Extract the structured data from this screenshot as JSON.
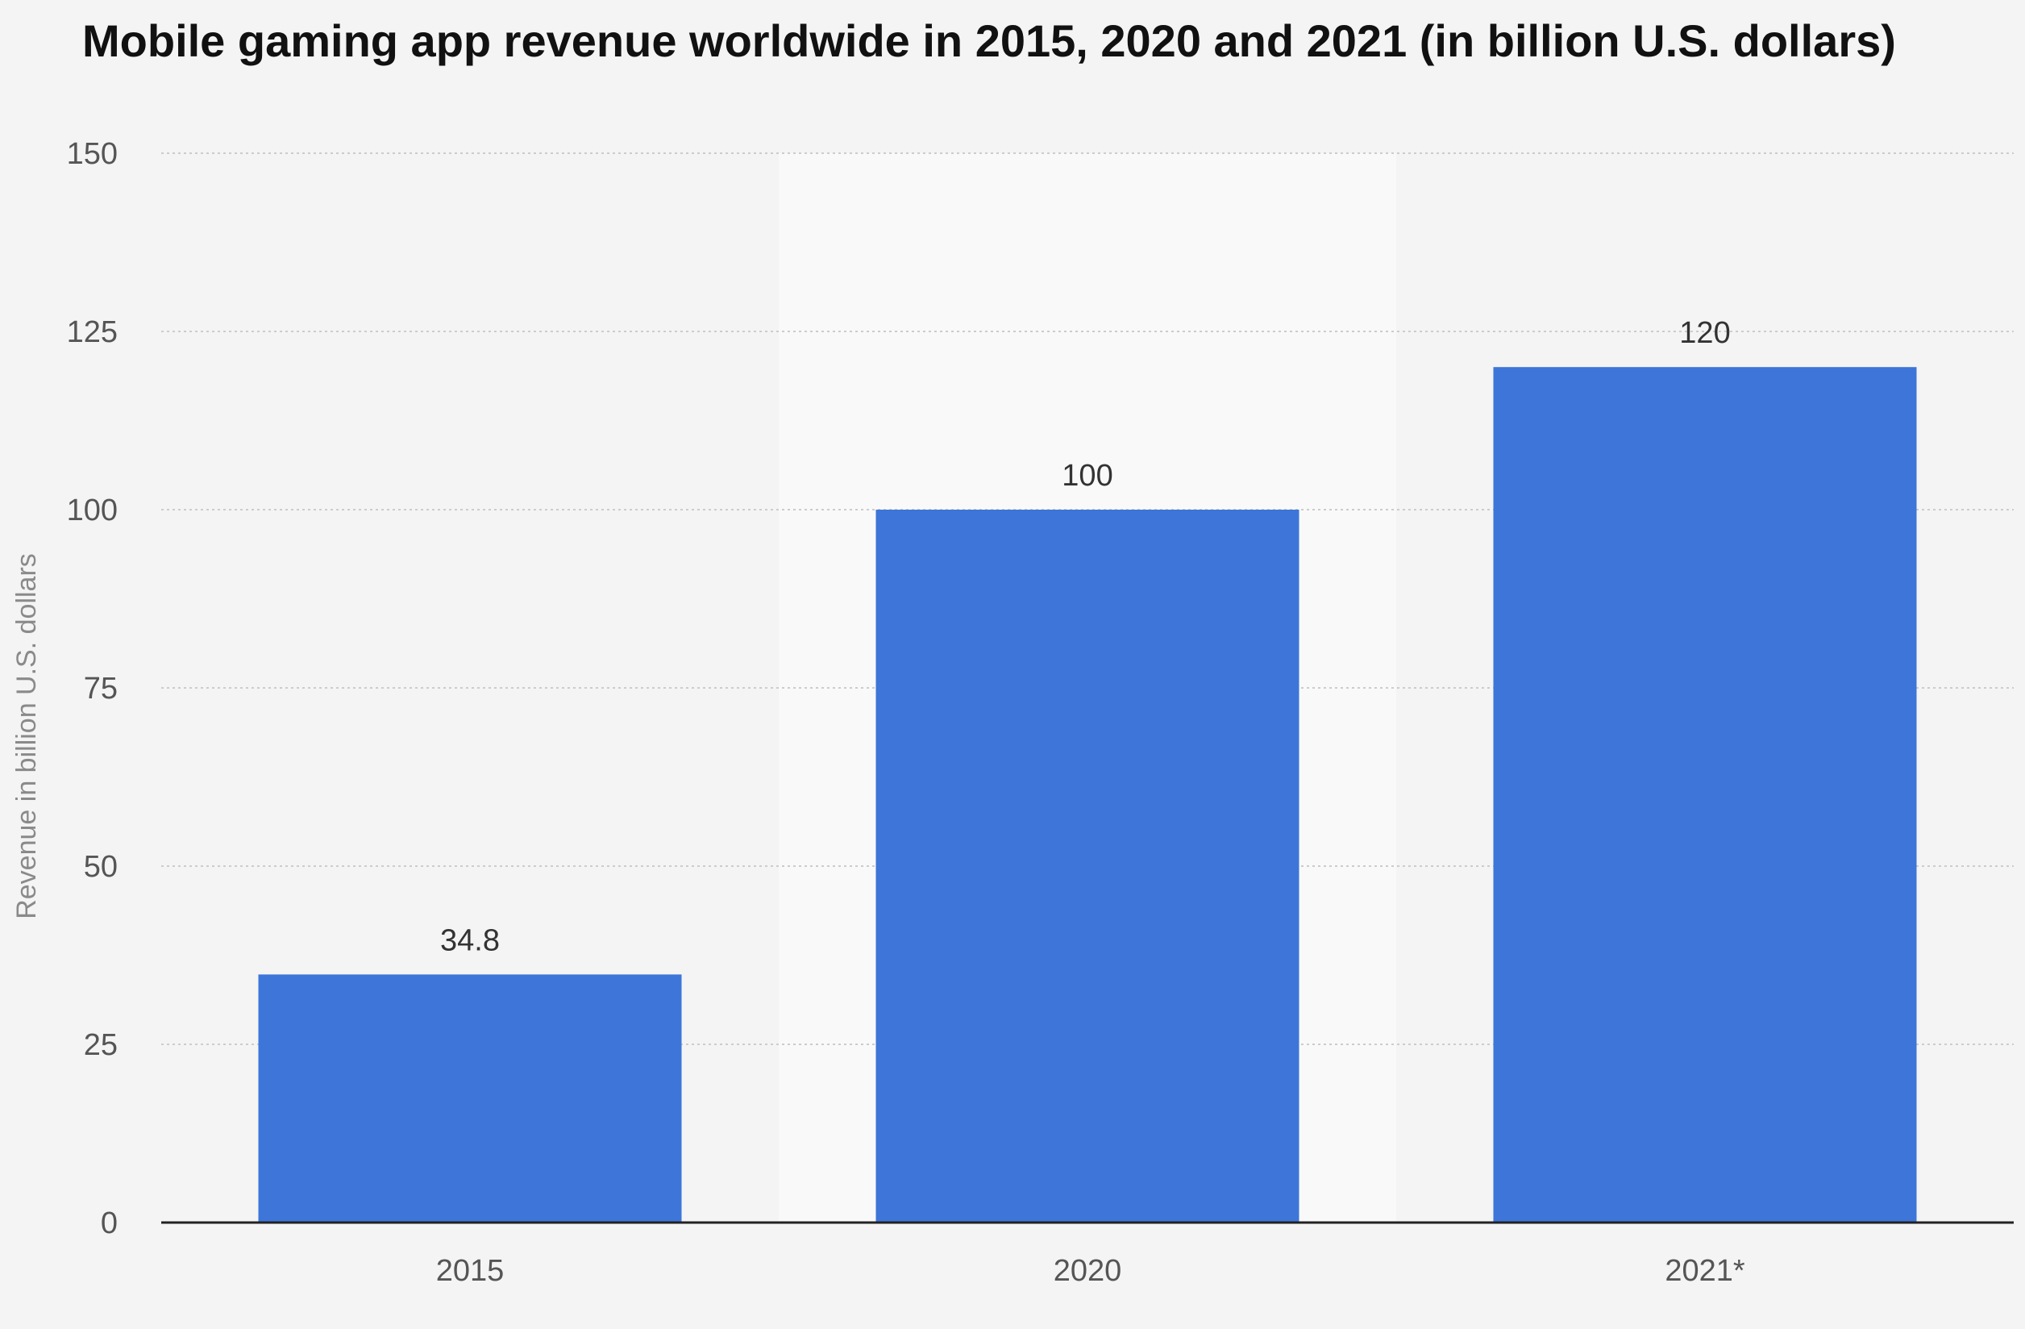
{
  "chart_data": {
    "type": "bar",
    "title": "Mobile gaming app revenue worldwide in 2015, 2020 and 2021 (in billion U.S. dollars)",
    "xlabel": "",
    "ylabel": "Revenue in billion U.S. dollars",
    "categories": [
      "2015",
      "2020",
      "2021*"
    ],
    "values": [
      34.8,
      100,
      120
    ],
    "data_labels": [
      "34.8",
      "100",
      "120"
    ],
    "yticks": [
      0,
      25,
      50,
      75,
      100,
      125,
      150
    ],
    "ylim": [
      0,
      150
    ],
    "grid": true,
    "legend": "none",
    "colors": {
      "bar": "#3d75d9",
      "background": "#f4f4f4",
      "band_alt": "#f9f9f9",
      "grid": "#cccccc",
      "axis": "#222222"
    }
  }
}
